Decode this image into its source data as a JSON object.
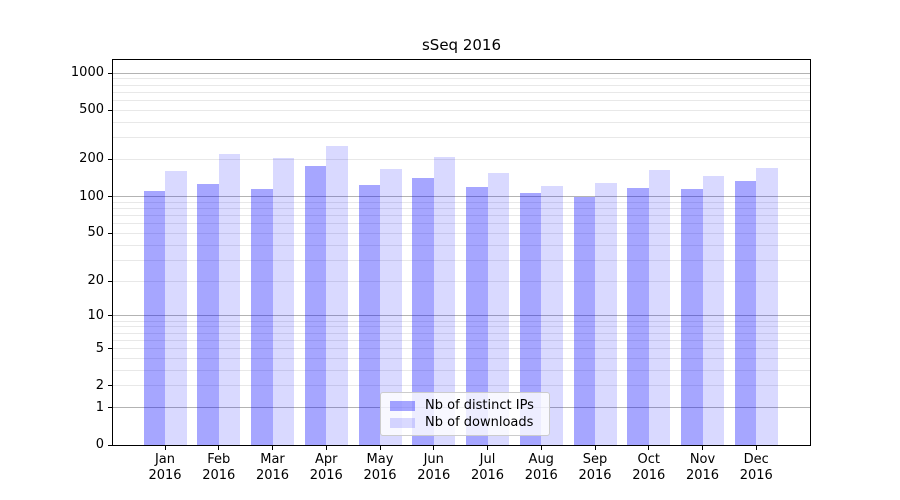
{
  "title": "sSeq 2016",
  "chart_data": {
    "type": "bar",
    "title": "sSeq 2016",
    "categories": [
      "Jan 2016",
      "Feb 2016",
      "Mar 2016",
      "Apr 2016",
      "May 2016",
      "Jun 2016",
      "Jul 2016",
      "Aug 2016",
      "Sep 2016",
      "Oct 2016",
      "Nov 2016",
      "Dec 2016"
    ],
    "series": [
      {
        "name": "Nb of distinct IPs",
        "color": "#0000ff59",
        "values": [
          110,
          126,
          115,
          178,
          124,
          142,
          119,
          107,
          100,
          117,
          115,
          133
        ]
      },
      {
        "name": "Nb of downloads",
        "color": "#0000ff26",
        "values": [
          161,
          221,
          205,
          258,
          166,
          210,
          154,
          122,
          128,
          164,
          148,
          170
        ]
      }
    ],
    "yscale": "log1p",
    "ylim": [
      0,
      1275
    ],
    "yticks": [
      0,
      1,
      2,
      5,
      10,
      20,
      50,
      100,
      200,
      500,
      1000
    ],
    "grid": true,
    "grid_major_color": "#b3b3b3",
    "grid_minor_color": "#e8e8e8",
    "legend_position": "lower center",
    "axis_color": "#000000",
    "background_color": "#ffffff"
  }
}
